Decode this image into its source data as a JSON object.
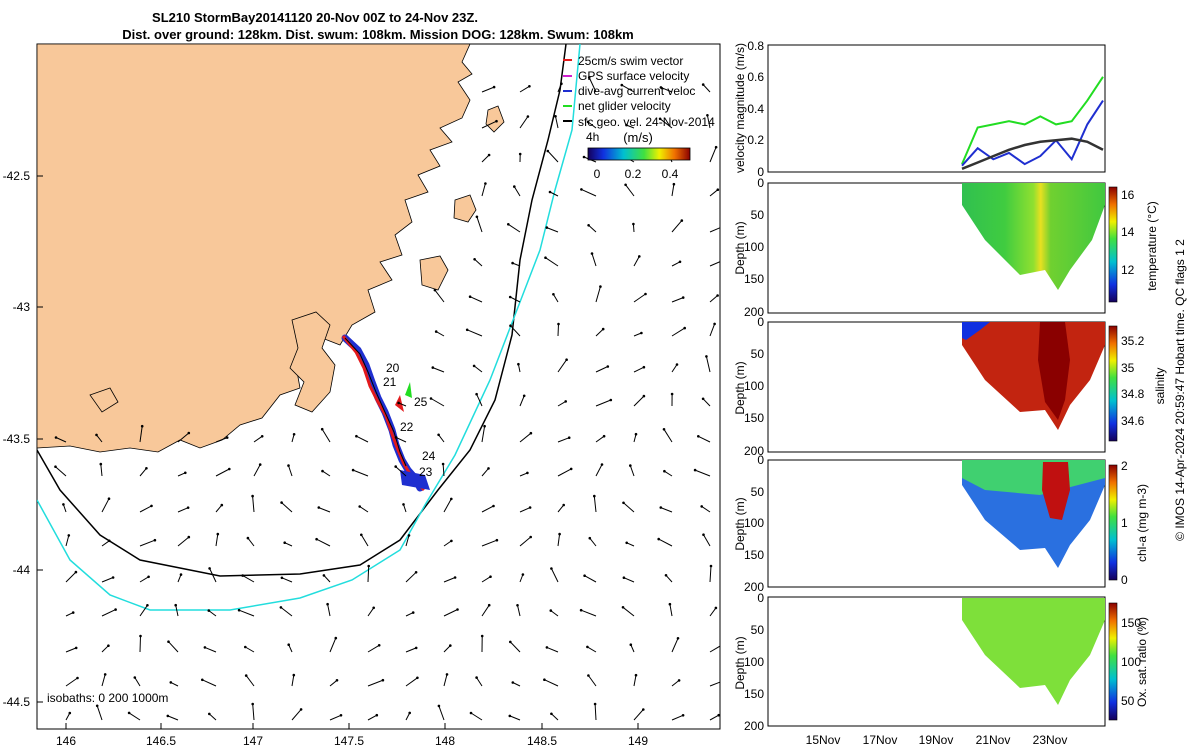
{
  "title_line1": "SL210 StormBay20141120 20-Nov 00Z to 24-Nov 23Z.",
  "title_line2": "Dist. over ground: 128km. Dist. swum: 108km. Mission DOG: 128km. Swum: 108km",
  "map": {
    "x_ticks": [
      "146",
      "146.5",
      "147",
      "147.5",
      "148",
      "148.5",
      "149"
    ],
    "y_ticks": [
      "-42.5",
      "-43",
      "-43.5",
      "-44",
      "-44.5"
    ],
    "isobath_note": "isobaths: 0   200  1000m",
    "legend": [
      {
        "label": "25cm/s swim vector",
        "color": "#e31a1c"
      },
      {
        "label": "GPS surface velocity",
        "color": "#d020d0"
      },
      {
        "label": "dive-avg current veloc",
        "color": "#1f2fd0"
      },
      {
        "label": "net glider velocity",
        "color": "#22dd22"
      },
      {
        "label": "sfc geo. vel. 24-Nov-2014",
        "color": "#000000"
      }
    ],
    "legend_extra": "4h",
    "speed_cbar_label": "(m/s)",
    "speed_cbar_ticks": [
      "0",
      "0.2",
      "0.4"
    ],
    "day_labels": [
      "20",
      "21",
      "25",
      "22",
      "24",
      "23"
    ],
    "colors": {
      "land": "#f8c89a",
      "isobath_200": "#000000",
      "isobath_1000": "#22dddd"
    }
  },
  "panels": [
    {
      "ylabel": "velocity magnitude (m/s)",
      "yticks": [
        "0",
        "0.2",
        "0.4",
        "0.6",
        "0.8"
      ]
    },
    {
      "ylabel": "Depth (m)",
      "yticks": [
        "0",
        "50",
        "100",
        "150",
        "200"
      ],
      "cbar_label": "temperature (°C)",
      "cbar_ticks": [
        "12",
        "14",
        "16"
      ]
    },
    {
      "ylabel": "Depth (m)",
      "yticks": [
        "0",
        "50",
        "100",
        "150",
        "200"
      ],
      "cbar_label": "salinity",
      "cbar_ticks": [
        "34.6",
        "34.8",
        "35",
        "35.2"
      ]
    },
    {
      "ylabel": "Depth (m)",
      "yticks": [
        "0",
        "50",
        "100",
        "150",
        "200"
      ],
      "cbar_label": "chl-a (mg m-3)",
      "cbar_ticks": [
        "0",
        "1",
        "2"
      ]
    },
    {
      "ylabel": "Depth (m)",
      "yticks": [
        "0",
        "50",
        "100",
        "150",
        "200"
      ],
      "cbar_label": "Ox. sat. ratio (%)",
      "cbar_ticks": [
        "50",
        "100",
        "150"
      ]
    }
  ],
  "time_ticks": [
    "15Nov",
    "17Nov",
    "19Nov",
    "21Nov",
    "23Nov"
  ],
  "side_note": "© IMOS 14-Apr-2024 20:59:47 Hobart time. QC flags 1  2",
  "chart_data": {
    "type": "line",
    "title": "velocity magnitude (m/s)",
    "x": [
      "20Nov",
      "20.5Nov",
      "21Nov",
      "21.5Nov",
      "22Nov",
      "22.5Nov",
      "23Nov",
      "23.5Nov",
      "24Nov",
      "24.5Nov"
    ],
    "series": [
      {
        "name": "net glider velocity",
        "color": "#22dd22",
        "values": [
          0.05,
          0.28,
          0.3,
          0.32,
          0.3,
          0.35,
          0.3,
          0.32,
          0.45,
          0.6
        ]
      },
      {
        "name": "dive-avg current veloc",
        "color": "#1f2fd0",
        "values": [
          0.04,
          0.15,
          0.08,
          0.12,
          0.05,
          0.1,
          0.2,
          0.08,
          0.3,
          0.45
        ]
      },
      {
        "name": "sfc geo. vel. 24-Nov-2014",
        "color": "#333333",
        "values": [
          0.02,
          0.06,
          0.1,
          0.14,
          0.17,
          0.19,
          0.2,
          0.21,
          0.19,
          0.14
        ]
      }
    ],
    "ylim": [
      0,
      0.8
    ]
  }
}
